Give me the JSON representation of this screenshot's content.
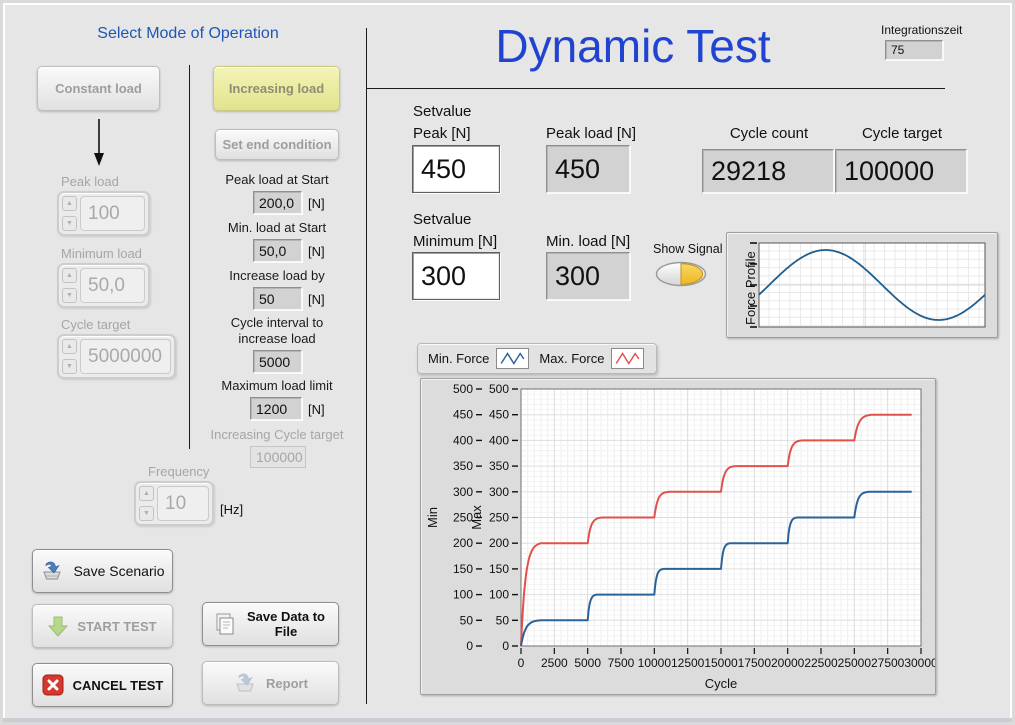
{
  "left_panel": {
    "title": "Select Mode of Operation",
    "mode_buttons": {
      "constant": "Constant load",
      "increasing": "Increasing load",
      "set_end": "Set end condition"
    },
    "constant_params": [
      {
        "label": "Peak load",
        "value": "100"
      },
      {
        "label": "Minimum load",
        "value": "50,0"
      },
      {
        "label": "Cycle target",
        "value": "5000000"
      }
    ],
    "increasing_params": [
      {
        "label": "Peak load at Start",
        "value": "200,0",
        "unit": "[N]"
      },
      {
        "label": "Min. load at Start",
        "value": "50,0",
        "unit": "[N]"
      },
      {
        "label": "Increase load by",
        "value": "50",
        "unit": "[N]"
      },
      {
        "label": "Cycle interval to increase load",
        "value": "5000",
        "unit": ""
      },
      {
        "label": "Maximum load limit",
        "value": "1200",
        "unit": "[N]"
      },
      {
        "label": "Increasing Cycle target",
        "value": "100000",
        "unit": ""
      }
    ],
    "frequency": {
      "label": "Frequency",
      "value": "10",
      "unit": "[Hz]"
    },
    "action_buttons": {
      "save_scenario": "Save Scenario",
      "start_test": "START TEST",
      "cancel_test": "CANCEL TEST",
      "save_data": "Save Data to File",
      "report": "Report"
    }
  },
  "header": {
    "title": "Dynamic Test",
    "integration_label": "Integrationszeit",
    "integration_value": "75"
  },
  "readouts": {
    "setvalue_peak": {
      "label1": "Setvalue",
      "label2": "Peak [N]",
      "value": "450"
    },
    "peak_load": {
      "label": "Peak load [N]",
      "value": "450"
    },
    "cycle_count": {
      "label": "Cycle count",
      "value": "29218"
    },
    "cycle_target": {
      "label": "Cycle target",
      "value": "100000"
    },
    "setvalue_min": {
      "label1": "Setvalue",
      "label2": "Minimum [N]",
      "value": "300"
    },
    "min_load": {
      "label": "Min. load [N]",
      "value": "300"
    },
    "show_signal": {
      "label": "Show Signal",
      "state": "on",
      "knob_color": "#f2c435"
    }
  },
  "legend": {
    "items": [
      {
        "label": "Min. Force",
        "color": "#2a6398"
      },
      {
        "label": "Max. Force",
        "color": "#e2504c"
      }
    ]
  },
  "chart_data": [
    {
      "id": "main",
      "type": "line",
      "title": "",
      "xlabel": "Cycle",
      "y_axes": [
        "Min",
        "Max"
      ],
      "xlim": [
        0,
        30000
      ],
      "ylim": [
        0,
        500
      ],
      "x_ticks": [
        0,
        2500,
        5000,
        7500,
        10000,
        12500,
        15000,
        17500,
        20000,
        22500,
        25000,
        27500,
        30000
      ],
      "y_ticks": [
        0,
        50,
        100,
        150,
        200,
        250,
        300,
        350,
        400,
        450,
        500
      ],
      "grid": true,
      "legend_position": "top-left",
      "x_end": 29300,
      "series": [
        {
          "name": "Max. Force",
          "color": "#e2504c",
          "start_value": 0,
          "step_x": [
            0,
            5000,
            10000,
            15000,
            20000,
            25000
          ],
          "levels": [
            200,
            250,
            300,
            350,
            400,
            450
          ],
          "rise_width": [
            1500,
            1100,
            1100,
            1100,
            1100,
            1400
          ]
        },
        {
          "name": "Min. Force",
          "color": "#2a6398",
          "start_value": 0,
          "step_x": [
            0,
            5000,
            10000,
            15000,
            20000,
            25000
          ],
          "levels": [
            50,
            100,
            150,
            200,
            250,
            300
          ],
          "rise_width": [
            1500,
            700,
            700,
            700,
            700,
            1100
          ]
        }
      ]
    },
    {
      "id": "force_profile",
      "type": "line",
      "ylabel": "Force Profile",
      "waveform": "sine",
      "periods": 1,
      "phase": -0.045,
      "color": "#1f5e8f"
    }
  ]
}
